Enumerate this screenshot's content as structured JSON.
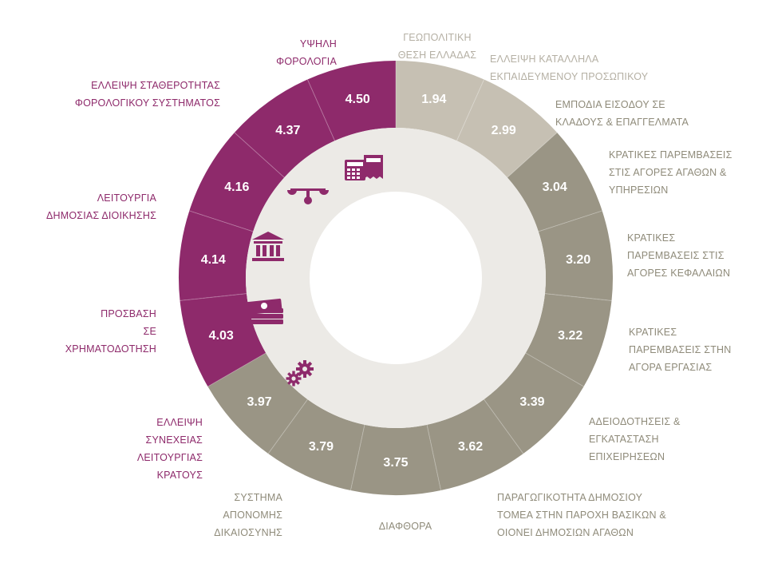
{
  "colors": {
    "purple": "#8e2a6b",
    "olive": "#9a9585",
    "light": "#c6c0b3",
    "inner_disc": "#eceae6",
    "value_text": "#ffffff",
    "label_text_olive": "#8f8b7a",
    "label_text_light": "#b5b0a4",
    "label_text_purple": "#8e2a6b"
  },
  "icons": [
    "calculator-receipt-icon",
    "balance-scale-icon",
    "bank-building-icon",
    "money-stack-icon",
    "gears-icon"
  ],
  "chart_data": {
    "type": "donut",
    "categories": [
      "ΓΕΩΠΟΛΙΤΙΚΗ ΘΕΣΗ ΕΛΛΑΔΑΣ",
      "ΕΛΛΕΙΨΗ ΚΑΤΑΛΛΗΛΑ ΕΚΠΑΙΔΕΥΜΕΝΟΥ ΠΡΟΣΩΠΙΚΟΥ",
      "ΕΜΠΟΔΙΑ ΕΙΣΟΔΟΥ ΣΕ ΚΛΑΔΟΥΣ & ΕΠΑΓΓΕΛΜΑΤΑ",
      "ΚΡΑΤΙΚΕΣ ΠΑΡΕΜΒΑΣΕΙΣ ΣΤΙΣ ΑΓΟΡΕΣ ΑΓΑΘΩΝ & ΥΠΗΡΕΣΙΩΝ",
      "ΚΡΑΤΙΚΕΣ ΠΑΡΕΜΒΑΣΕΙΣ ΣΤΙΣ ΑΓΟΡΕΣ ΚΕΦΑΛΑΙΩΝ",
      "ΚΡΑΤΙΚΕΣ ΠΑΡΕΜΒΑΣΕΙΣ ΣΤΗΝ ΑΓΟΡΑ ΕΡΓΑΣΙΑΣ",
      "ΑΔΕΙΟΔΟΤΗΣΕΙΣ & ΕΓΚΑΤΑΣΤΑΣΗ ΕΠΙΧΕΙΡΗΣΕΩΝ",
      "ΠΑΡΑΓΩΓΙΚΟΤΗΤΑ ΔΗΜΟΣΙΟΥ ΤΟΜΕΑ ΣΤΗΝ ΠΑΡΟΧΗ ΒΑΣΙΚΩΝ & ΟΙΟΝΕΙ ΔΗΜΟΣΙΩΝ ΑΓΑΘΩΝ",
      "ΔΙΑΦΘΟΡΑ",
      "ΣΥΣΤΗΜΑ ΑΠΟΝΟΜΗΣ ΔΙΚΑΙΟΣΥΝΗΣ",
      "ΕΛΛΕΙΨΗ ΣΥΝΕΧΕΙΑΣ ΛΕΙΤΟΥΡΓΙΑΣ ΚΡΑΤΟΥΣ",
      "ΠΡΟΣΒΑΣΗ ΣΕ ΧΡΗΜΑΤΟΔΟΤΗΣΗ",
      "ΛΕΙΤΟΥΡΓΙΑ ΔΗΜΟΣΙΑΣ ΔΙΟΙΚΗΣΗΣ",
      "ΕΛΛΕΙΨΗ ΣΤΑΘΕΡΟΤΗΤΑΣ ΦΟΡΟΛΟΓΙΚΟΥ ΣΥΣΤΗΜΑΤΟΣ",
      "ΥΨΗΛΗ ΦΟΡΟΛΟΓΙΑ"
    ],
    "values": [
      1.94,
      2.99,
      3.04,
      3.2,
      3.22,
      3.39,
      3.62,
      3.75,
      3.79,
      3.97,
      4.03,
      4.14,
      4.16,
      4.37,
      4.5
    ],
    "value_labels": [
      "1.94",
      "2.99",
      "3.04",
      "3.20",
      "3.22",
      "3.39",
      "3.62",
      "3.75",
      "3.79",
      "3.97",
      "4.03",
      "4.14",
      "4.16",
      "4.37",
      "4.50"
    ],
    "segment_color_keys": [
      "light",
      "light",
      "olive",
      "olive",
      "olive",
      "olive",
      "olive",
      "olive",
      "olive",
      "olive",
      "purple",
      "purple",
      "purple",
      "purple",
      "purple"
    ],
    "segment_sizes": "equal",
    "start": "12 o'clock",
    "direction": "clockwise",
    "labels": [
      {
        "lines": [
          "ΓΕΩΠΟΛΙΤΙΚΗ",
          "ΘΕΣΗ ΕΛΛΑΔΑΣ"
        ],
        "color_key": "label_text_light"
      },
      {
        "lines": [
          "ΕΛΛΕΙΨΗ ΚΑΤΑΛΛΗΛΑ",
          "ΕΚΠΑΙΔΕΥΜΕΝΟΥ ΠΡΟΣΩΠΙΚΟΥ"
        ],
        "color_key": "label_text_light"
      },
      {
        "lines": [
          "ΕΜΠΟΔΙΑ ΕΙΣΟΔΟΥ ΣΕ",
          "ΚΛΑΔΟΥΣ & ΕΠΑΓΓΕΛΜΑΤΑ"
        ],
        "color_key": "label_text_olive"
      },
      {
        "lines": [
          "ΚΡΑΤΙΚΕΣ ΠΑΡΕΜΒΑΣΕΙΣ",
          "ΣΤΙΣ ΑΓΟΡΕΣ ΑΓΑΘΩΝ &",
          "ΥΠΗΡΕΣΙΩΝ"
        ],
        "color_key": "label_text_olive"
      },
      {
        "lines": [
          "ΚΡΑΤΙΚΕΣ",
          "ΠΑΡΕΜΒΑΣΕΙΣ ΣΤΙΣ",
          "ΑΓΟΡΕΣ ΚΕΦΑΛΑΙΩΝ"
        ],
        "color_key": "label_text_olive"
      },
      {
        "lines": [
          "ΚΡΑΤΙΚΕΣ",
          "ΠΑΡΕΜΒΑΣΕΙΣ ΣΤΗΝ",
          "ΑΓΟΡΑ ΕΡΓΑΣΙΑΣ"
        ],
        "color_key": "label_text_olive"
      },
      {
        "lines": [
          "ΑΔΕΙΟΔΟΤΗΣΕΙΣ &",
          "ΕΓΚΑΤΑΣΤΑΣΗ",
          "ΕΠΙΧΕΙΡΗΣΕΩΝ"
        ],
        "color_key": "label_text_olive"
      },
      {
        "lines": [
          "ΠΑΡΑΓΩΓΙΚΟΤΗΤΑ ΔΗΜΟΣΙΟΥ",
          "ΤΟΜΕΑ ΣΤΗΝ ΠΑΡΟΧΗ ΒΑΣΙΚΩΝ &",
          "ΟΙΟΝΕΙ ΔΗΜΟΣΙΩΝ ΑΓΑΘΩΝ"
        ],
        "color_key": "label_text_olive"
      },
      {
        "lines": [
          "ΔΙΑΦΘΟΡΑ"
        ],
        "color_key": "label_text_olive"
      },
      {
        "lines": [
          "ΣΥΣΤΗΜΑ",
          "ΑΠΟΝΟΜΗΣ",
          "ΔΙΚΑΙΟΣΥΝΗΣ"
        ],
        "color_key": "label_text_olive"
      },
      {
        "lines": [
          "ΕΛΛΕΙΨΗ",
          "ΣΥΝΕΧΕΙΑΣ",
          "ΛΕΙΤΟΥΡΓΙΑΣ",
          "ΚΡΑΤΟΥΣ"
        ],
        "color_key": "label_text_purple"
      },
      {
        "lines": [
          "ΠΡΟΣΒΑΣΗ",
          "ΣΕ",
          "ΧΡΗΜΑΤΟΔΟΤΗΣΗ"
        ],
        "color_key": "label_text_purple"
      },
      {
        "lines": [
          "ΛΕΙΤΟΥΡΓΙΑ",
          "ΔΗΜΟΣΙΑΣ ΔΙΟΙΚΗΣΗΣ"
        ],
        "color_key": "label_text_purple"
      },
      {
        "lines": [
          "ΕΛΛΕΙΨΗ ΣΤΑΘΕΡΟΤΗΤΑΣ",
          "ΦΟΡΟΛΟΓΙΚΟΥ ΣΥΣΤΗΜΑΤΟΣ"
        ],
        "color_key": "label_text_purple"
      },
      {
        "lines": [
          "ΥΨΗΛΗ",
          "ΦΟΡΟΛΟΓΙΑ"
        ],
        "color_key": "label_text_purple"
      }
    ]
  }
}
